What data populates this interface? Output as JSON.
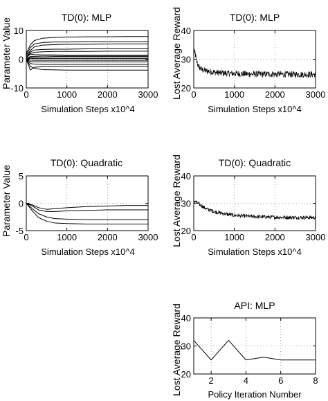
{
  "chart_data": [
    {
      "id": "td-mlp-params",
      "type": "line",
      "title": "TD(0): MLP",
      "xlabel": "Simulation Steps   x10^4",
      "ylabel": "Parameter Value",
      "xlim": [
        0,
        3000
      ],
      "ylim": [
        -10,
        10
      ],
      "xticks": [
        0,
        1000,
        2000,
        3000
      ],
      "yticks": [
        -10,
        0,
        10
      ],
      "grid": true,
      "series": [
        {
          "x": [
            0,
            100,
            200,
            400,
            700,
            1000,
            1500,
            2000,
            2500,
            3000
          ],
          "values": [
            2,
            5,
            6.5,
            7.3,
            7.6,
            7.7,
            7.8,
            7.8,
            7.9,
            7.9
          ]
        },
        {
          "x": [
            0,
            100,
            200,
            400,
            700,
            1000,
            1500,
            2000,
            2500,
            3000
          ],
          "values": [
            1.5,
            4,
            5.3,
            5.8,
            6,
            6,
            6.1,
            6.1,
            6.1,
            6.1
          ]
        },
        {
          "x": [
            0,
            100,
            200,
            400,
            700,
            1000,
            1500,
            2000,
            2500,
            3000
          ],
          "values": [
            1,
            3,
            4.3,
            4.9,
            5.1,
            5.2,
            5.2,
            5.3,
            5.3,
            5.3
          ]
        },
        {
          "x": [
            0,
            100,
            200,
            400,
            700,
            1000,
            1500,
            2000,
            2500,
            3000
          ],
          "values": [
            0.5,
            2.5,
            3.2,
            3.4,
            3.5,
            3.5,
            3.6,
            3.6,
            3.6,
            3.6
          ]
        },
        {
          "x": [
            0,
            100,
            200,
            400,
            700,
            1000,
            1500,
            2000,
            2500,
            3000
          ],
          "values": [
            0.3,
            2,
            2.4,
            2.6,
            2.7,
            2.7,
            2.7,
            2.8,
            2.8,
            2.8
          ]
        },
        {
          "x": [
            0,
            100,
            200,
            400,
            700,
            1000,
            1500,
            2000,
            2500,
            3000
          ],
          "values": [
            0.5,
            1.8,
            1.6,
            1.5,
            1.5,
            1.4,
            1.4,
            1.4,
            1.4,
            1.4
          ]
        },
        {
          "x": [
            0,
            100,
            200,
            400,
            700,
            1000,
            1500,
            2000,
            2500,
            3000
          ],
          "values": [
            0,
            1,
            1,
            1.1,
            1.1,
            1.1,
            1.1,
            1.1,
            1.1,
            1.1
          ]
        },
        {
          "x": [
            0,
            100,
            200,
            400,
            700,
            1000,
            1500,
            2000,
            2500,
            3000
          ],
          "values": [
            0,
            0.6,
            0.7,
            0.7,
            0.8,
            0.8,
            0.8,
            0.8,
            0.8,
            0.8
          ]
        },
        {
          "x": [
            0,
            100,
            200,
            400,
            700,
            1000,
            1500,
            2000,
            2500,
            3000
          ],
          "values": [
            0.2,
            0.3,
            0.2,
            0.2,
            0.2,
            0.2,
            0.2,
            0.2,
            0.2,
            0.2
          ]
        },
        {
          "x": [
            0,
            100,
            200,
            400,
            700,
            1000,
            1500,
            2000,
            2500,
            3000
          ],
          "values": [
            0,
            -0.3,
            -0.4,
            -0.4,
            -0.4,
            -0.4,
            -0.4,
            -0.4,
            -0.4,
            -0.4
          ]
        },
        {
          "x": [
            0,
            100,
            200,
            400,
            700,
            1000,
            1500,
            2000,
            2500,
            3000
          ],
          "values": [
            0,
            -0.8,
            -0.9,
            -0.9,
            -0.9,
            -0.9,
            -0.9,
            -0.9,
            -0.9,
            -0.9
          ]
        },
        {
          "x": [
            0,
            100,
            200,
            400,
            700,
            1000,
            1500,
            2000,
            2500,
            3000
          ],
          "values": [
            0,
            -1.5,
            -1.7,
            -1.8,
            -1.8,
            -1.8,
            -1.8,
            -1.8,
            -1.8,
            -1.8
          ]
        },
        {
          "x": [
            0,
            100,
            200,
            400,
            700,
            1000,
            1500,
            2000,
            2500,
            3000
          ],
          "values": [
            0,
            -3.8,
            -2.8,
            -2.6,
            -2.5,
            -2.5,
            -2.5,
            -2.5,
            -2.5,
            -2.5
          ]
        },
        {
          "x": [
            0,
            100,
            200,
            400,
            700,
            1000,
            1500,
            2000,
            2500,
            3000
          ],
          "values": [
            0,
            -2.5,
            -3.2,
            -3.6,
            -3.7,
            -3.8,
            -3.8,
            -3.8,
            -3.8,
            -3.8
          ]
        }
      ]
    },
    {
      "id": "td-mlp-reward",
      "type": "line",
      "title": "TD(0): MLP",
      "xlabel": "Simulation Steps   x10^4",
      "ylabel": "Lost Average Reward",
      "xlim": [
        0,
        3000
      ],
      "ylim": [
        20,
        40
      ],
      "xticks": [
        0,
        1000,
        2000,
        3000
      ],
      "yticks": [
        20,
        30,
        40
      ],
      "grid": true,
      "series": [
        {
          "x": [
            0,
            30,
            60,
            100,
            150,
            200,
            300,
            400,
            600,
            800,
            1000,
            1500,
            2000,
            2500,
            3000
          ],
          "values": [
            32,
            32.5,
            30,
            28,
            27,
            26.3,
            26,
            25.7,
            25.3,
            25.1,
            25,
            24.8,
            24.8,
            24.7,
            24.7
          ],
          "noise": 1.1
        }
      ]
    },
    {
      "id": "td-quad-params",
      "type": "line",
      "title": "TD(0): Quadratic",
      "xlabel": "Simulation Steps   x10^4",
      "ylabel": "Parameter Value",
      "xlim": [
        0,
        3000
      ],
      "ylim": [
        -5,
        5
      ],
      "xticks": [
        0,
        1000,
        2000,
        3000
      ],
      "yticks": [
        -5,
        0,
        5
      ],
      "grid": true,
      "series": [
        {
          "x": [
            0,
            150,
            300,
            500,
            700,
            1000,
            1500,
            2000,
            2500,
            3000
          ],
          "values": [
            0,
            -0.3,
            -0.8,
            -1.1,
            -1.0,
            -0.8,
            -0.6,
            -0.5,
            -0.4,
            -0.4
          ]
        },
        {
          "x": [
            0,
            150,
            300,
            500,
            700,
            1000,
            1500,
            2000,
            2500,
            3000
          ],
          "values": [
            0,
            -0.5,
            -1.2,
            -1.5,
            -1.5,
            -1.4,
            -1.3,
            -1.2,
            -1.2,
            -1.2
          ]
        },
        {
          "x": [
            0,
            150,
            300,
            500,
            700,
            1000,
            1500,
            2000,
            2500,
            3000
          ],
          "values": [
            0,
            -1.0,
            -1.9,
            -2.5,
            -2.8,
            -2.9,
            -3.0,
            -3.0,
            -3.0,
            -3.0
          ]
        },
        {
          "x": [
            0,
            150,
            300,
            500,
            700,
            1000,
            1500,
            2000,
            2500,
            3000
          ],
          "values": [
            0,
            -1.4,
            -2.6,
            -3.3,
            -3.6,
            -3.7,
            -3.8,
            -3.8,
            -3.8,
            -3.8
          ]
        }
      ]
    },
    {
      "id": "td-quad-reward",
      "type": "line",
      "title": "TD(0): Quadratic",
      "xlabel": "Simulation Steps   x10^4",
      "ylabel": "Lost Average Reward",
      "xlim": [
        0,
        3000
      ],
      "ylim": [
        20,
        40
      ],
      "xticks": [
        0,
        1000,
        2000,
        3000
      ],
      "yticks": [
        20,
        30,
        40
      ],
      "grid": true,
      "series": [
        {
          "x": [
            0,
            100,
            200,
            300,
            500,
            700,
            1000,
            1500,
            2000,
            2500,
            3000
          ],
          "values": [
            31,
            30,
            29,
            28,
            27,
            26.3,
            25.6,
            25.1,
            24.9,
            24.8,
            24.8
          ],
          "noise": 0.7
        }
      ]
    },
    {
      "id": "api-mlp-reward",
      "type": "line",
      "title": "API: MLP",
      "xlabel": "Policy Iteration Number",
      "ylabel": "Lost Average Reward",
      "xlim": [
        1,
        8
      ],
      "ylim": [
        20,
        40
      ],
      "xticks": [
        2,
        4,
        6,
        8
      ],
      "yticks": [
        20,
        30,
        40
      ],
      "grid": true,
      "series": [
        {
          "x": [
            1,
            2,
            3,
            4,
            5,
            6,
            7,
            8
          ],
          "values": [
            32,
            25,
            32,
            25,
            26,
            25,
            25,
            25
          ]
        }
      ]
    }
  ]
}
